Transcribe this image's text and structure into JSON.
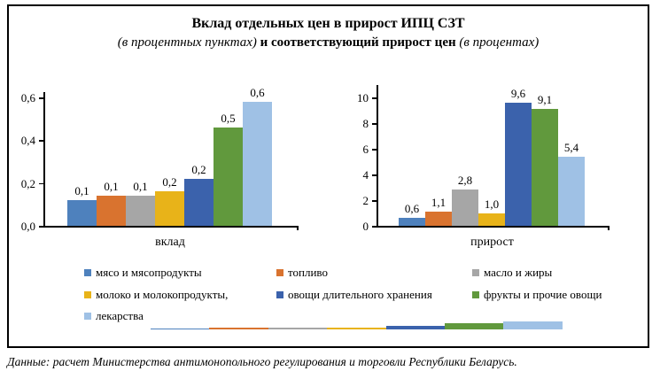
{
  "title": {
    "line1": "Вклад отдельных цен в прирост ИПЦ СЗТ",
    "line2_italic1": "(в процентных пунктах)",
    "line2_bold": "и соответствующий прирост цен",
    "line2_italic2": "(в процентах)"
  },
  "palette": [
    "#4E81BD",
    "#D9732F",
    "#A6A6A6",
    "#E8B319",
    "#3B62AC",
    "#61993D",
    "#9FC1E5"
  ],
  "legend": {
    "items": [
      {
        "label": "мясо и мясопродукты",
        "color": "#4E81BD"
      },
      {
        "label": "топливо",
        "color": "#D9732F"
      },
      {
        "label": "масло и жиры",
        "color": "#A6A6A6"
      },
      {
        "label": "молоко и молокопродукты,",
        "color": "#E8B319"
      },
      {
        "label": "овощи длительного хранения",
        "color": "#3B62AC"
      },
      {
        "label": "фрукты и прочие овощи",
        "color": "#61993D"
      },
      {
        "label": "лекарства",
        "color": "#9FC1E5"
      }
    ]
  },
  "chart_data": [
    {
      "type": "bar",
      "title": "вклад",
      "xlabel": "вклад",
      "ylabel": "",
      "categories": [
        "мясо и мясопродукты",
        "топливо",
        "масло и жиры",
        "молоко и молокопродукты",
        "овощи длительного хранения",
        "фрукты и прочие овощи",
        "лекарства"
      ],
      "values": [
        0.12,
        0.14,
        0.14,
        0.16,
        0.22,
        0.46,
        0.58
      ],
      "bar_labels": [
        "0,1",
        "0,1",
        "0,1",
        "0,2",
        "0,2",
        "0,5",
        "0,6"
      ],
      "ylim": [
        0,
        0.6
      ],
      "yticks": [
        {
          "value": 0.0,
          "label": "0,0"
        },
        {
          "value": 0.2,
          "label": "0,2"
        },
        {
          "value": 0.4,
          "label": "0,4"
        },
        {
          "value": 0.6,
          "label": "0,6"
        }
      ],
      "grid": false,
      "legend_position": "bottom"
    },
    {
      "type": "bar",
      "title": "прирост",
      "xlabel": "прирост",
      "ylabel": "",
      "categories": [
        "мясо и мясопродукты",
        "топливо",
        "масло и жиры",
        "молоко и молокопродукты",
        "овощи длительного хранения",
        "фрукты и прочие овощи",
        "лекарства"
      ],
      "values": [
        0.6,
        1.1,
        2.8,
        1.0,
        9.6,
        9.1,
        5.4
      ],
      "bar_labels": [
        "0,6",
        "1,1",
        "2,8",
        "1,0",
        "9,6",
        "9,1",
        "5,4"
      ],
      "ylim": [
        0,
        10
      ],
      "yticks": [
        {
          "value": 0,
          "label": "0"
        },
        {
          "value": 2,
          "label": "2"
        },
        {
          "value": 4,
          "label": "4"
        },
        {
          "value": 6,
          "label": "6"
        },
        {
          "value": 8,
          "label": "8"
        },
        {
          "value": 10,
          "label": "10"
        }
      ],
      "grid": false,
      "legend_position": "bottom"
    }
  ],
  "mini_strip": {
    "colors": [
      "#4E81BD",
      "#D9732F",
      "#A6A6A6",
      "#E8B319",
      "#3B62AC",
      "#61993D",
      "#9FC1E5"
    ]
  },
  "caption": {
    "text": "Данные: расчет Министерства антимонопольного регулирования и торговли Республики Беларусь."
  }
}
